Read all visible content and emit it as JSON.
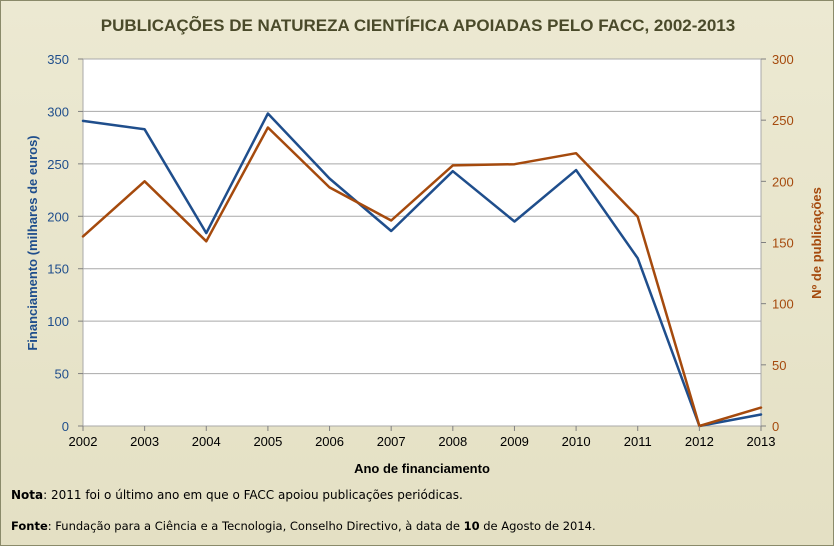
{
  "chart_data": {
    "type": "line",
    "title": "PUBLICAÇÕES DE NATUREZA CIENTÍFICA APOIADAS PELO FACC, 2002-2013",
    "xlabel": "Ano de financiamento",
    "ylabel_left": "Financiamento (milhares de euros)",
    "ylabel_right": "Nº de publicações",
    "x": [
      "2002",
      "2003",
      "2004",
      "2005",
      "2006",
      "2007",
      "2008",
      "2009",
      "2010",
      "2011",
      "2012",
      "2013"
    ],
    "ylim_left": [
      0,
      350
    ],
    "ylim_right": [
      0,
      300
    ],
    "yticks_left": [
      0,
      50,
      100,
      150,
      200,
      250,
      300,
      350
    ],
    "yticks_right": [
      0,
      50,
      100,
      150,
      200,
      250,
      300
    ],
    "grid": true,
    "legend": "none",
    "series": [
      {
        "axis": "left",
        "color": "#1f4e8c",
        "values": [
          291,
          283,
          184,
          298,
          236,
          186,
          243,
          195,
          244,
          160,
          0,
          11
        ]
      },
      {
        "axis": "right",
        "color": "#a54a0d",
        "values": [
          155,
          200,
          151,
          244,
          195,
          168,
          213,
          214,
          223,
          171,
          0,
          15
        ]
      }
    ]
  },
  "notes": {
    "nota_label": "Nota",
    "nota_text": ": 2011 foi o último ano em que o FACC apoiou publicações periódicas.",
    "fonte_label": "Fonte",
    "fonte_text_a": ": Fundação para a Ciência e a Tecnologia, Conselho Directivo, à data de ",
    "fonte_bold": "10",
    "fonte_text_b": " de Agosto de 2014."
  },
  "colors": {
    "left_axis": "#1f4e8c",
    "right_axis": "#a54a0d",
    "title": "#4a4a2a",
    "gridline": "#a9a9a9"
  }
}
